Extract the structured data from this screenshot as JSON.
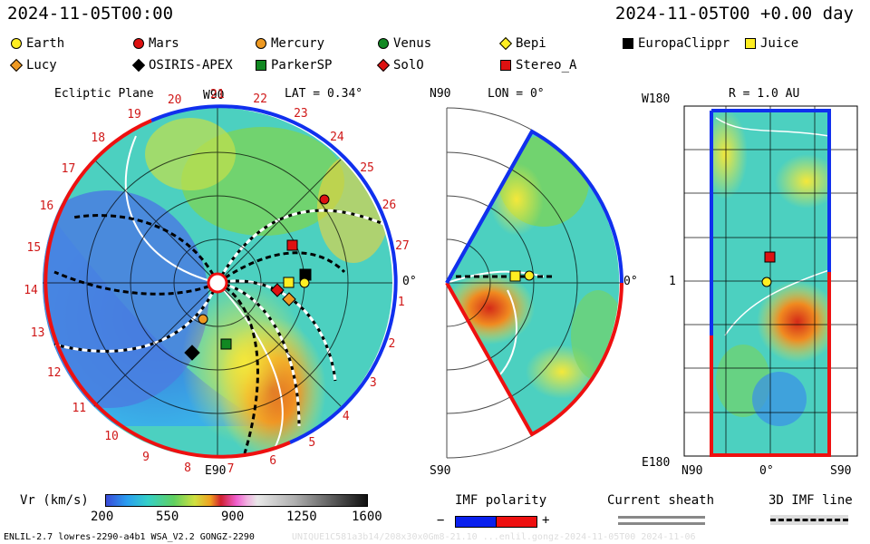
{
  "header": {
    "time_left": "2024-11-05T00:00",
    "time_right": "2024-11-05T00 +0.00 day"
  },
  "legend": [
    {
      "label": "Earth",
      "shape": "circle",
      "color": "#ffee22"
    },
    {
      "label": "Mars",
      "shape": "circle",
      "color": "#dd1111"
    },
    {
      "label": "Mercury",
      "shape": "circle",
      "color": "#ee9922"
    },
    {
      "label": "Venus",
      "shape": "circle",
      "color": "#118822"
    },
    {
      "label": "Bepi",
      "shape": "diamond",
      "color": "#ffee22"
    },
    {
      "label": "EuropaClippr",
      "shape": "square",
      "color": "#000000"
    },
    {
      "label": "Juice",
      "shape": "square",
      "color": "#ffee22"
    },
    {
      "label": "Lucy",
      "shape": "diamond",
      "color": "#ee9922"
    },
    {
      "label": "OSIRIS-APEX",
      "shape": "diamond",
      "color": "#000000"
    },
    {
      "label": "ParkerSP",
      "shape": "square",
      "color": "#118822"
    },
    {
      "label": "SolO",
      "shape": "diamond",
      "color": "#dd1111"
    },
    {
      "label": "Stereo_A",
      "shape": "square",
      "color": "#dd1111"
    }
  ],
  "panel1": {
    "title": "Ecliptic Plane",
    "lat": "LAT = 0.34°",
    "w90": "W90",
    "e90": "E90",
    "zero": "0°",
    "carrington": [
      "1",
      "2",
      "3",
      "4",
      "5",
      "6",
      "7",
      "8",
      "9",
      "10",
      "11",
      "12",
      "13",
      "14",
      "15",
      "16",
      "17",
      "18",
      "19",
      "20",
      "21",
      "22",
      "23",
      "24",
      "25",
      "26",
      "27"
    ]
  },
  "panel2": {
    "n90": "N90",
    "lon": "LON = 0°",
    "s90": "S90",
    "zero": "0°"
  },
  "panel3": {
    "w180": "W180",
    "r": "R = 1.0 AU",
    "one": "1",
    "e180": "E180",
    "n90": "N90",
    "zero": "0°",
    "s90": "S90"
  },
  "colorbar": {
    "label": "Vr (km/s)",
    "ticks": [
      "200",
      "550",
      "900",
      "1250",
      "1600"
    ]
  },
  "imf": {
    "label": "IMF polarity",
    "minus": "−",
    "plus": "+",
    "neg_color": "#0a20ee",
    "pos_color": "#ee1010"
  },
  "sheath": {
    "label": "Current sheath"
  },
  "imfline": {
    "label": "3D IMF line"
  },
  "footer": {
    "left": "ENLIL-2.7 lowres-2290-a4b1 WSA_V2.2 GONGZ-2290",
    "right": "UNIQUE1C581a3b14/208x30x0Gm8-21.10 ...enlil.gongz-2024-11-05T00  2024-11-06"
  }
}
